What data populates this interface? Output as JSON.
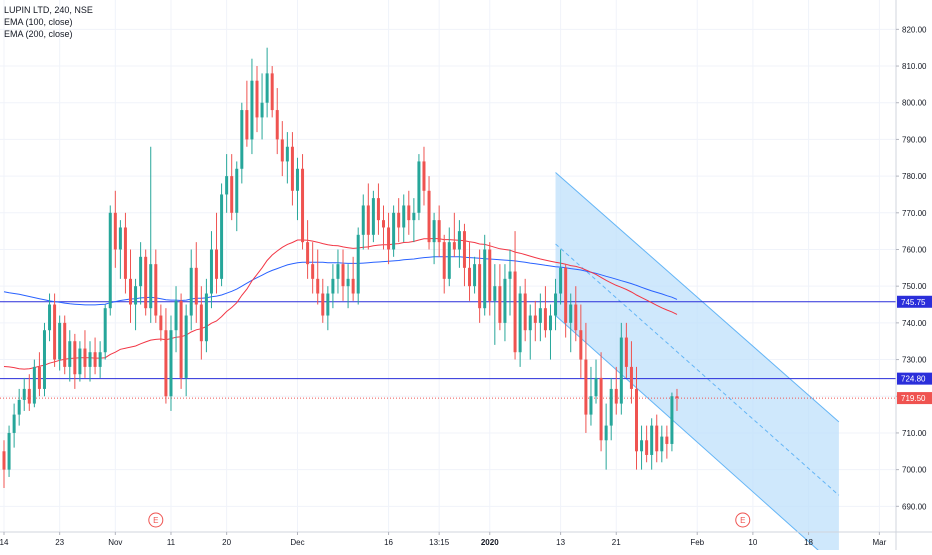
{
  "legend": {
    "symbol_line": "LUPIN LTD, 240, NSE",
    "ema100": "EMA (100, close)",
    "ema200": "EMA (200, close)"
  },
  "colors": {
    "up": "#26a69a",
    "down": "#ef5350",
    "ema100": "#f23645",
    "ema200": "#2962ff",
    "hline": "#2a2eda",
    "current_price": "#ef5350",
    "channel_fill": "#bbdefb",
    "channel_line": "#64b5f6",
    "grid": "#f0f3fa",
    "axis_text": "#131722",
    "earnings": "#ef5350"
  },
  "chart_data": {
    "type": "candlestick",
    "ylim": [
      683,
      828
    ],
    "y_ticks": [
      "690.00",
      "700.00",
      "710.00",
      "720.00",
      "730.00",
      "740.00",
      "750.00",
      "760.00",
      "770.00",
      "780.00",
      "790.00",
      "800.00",
      "810.00",
      "820.00"
    ],
    "x_ticks": [
      {
        "label": "14",
        "bar": 0
      },
      {
        "label": "23",
        "bar": 11
      },
      {
        "label": "Nov",
        "bar": 22
      },
      {
        "label": "11",
        "bar": 33
      },
      {
        "label": "20",
        "bar": 44
      },
      {
        "label": "Dec",
        "bar": 58
      },
      {
        "label": "16",
        "bar": 76
      },
      {
        "label": "13:15",
        "bar": 86
      },
      {
        "label": "2020",
        "bar": 96
      },
      {
        "label": "13",
        "bar": 110
      },
      {
        "label": "21",
        "bar": 121
      },
      {
        "label": "Feb",
        "bar": 137
      },
      {
        "label": "10",
        "bar": 148
      },
      {
        "label": "18",
        "bar": 159
      },
      {
        "label": "Mar",
        "bar": 173
      }
    ],
    "horizontal_lines": [
      {
        "value": 745.75,
        "label": "745.75"
      },
      {
        "value": 724.8,
        "label": "724.80"
      }
    ],
    "current_price": {
      "value": 719.5,
      "label": "719.50"
    },
    "earnings_markers": [
      {
        "bar": 30,
        "label": "E"
      },
      {
        "bar": 146,
        "label": "E"
      }
    ],
    "channel": {
      "upper_start": {
        "bar": 109,
        "value": 781
      },
      "upper_end": {
        "bar": 165,
        "value": 713
      },
      "lower_start": {
        "bar": 109,
        "value": 742
      },
      "lower_end": {
        "bar": 165,
        "value": 673
      },
      "mid_start": {
        "bar": 109,
        "value": 761.5
      },
      "mid_end": {
        "bar": 165,
        "value": 693
      }
    },
    "ohlc": [
      [
        705,
        708,
        695,
        700
      ],
      [
        700,
        712,
        698,
        710
      ],
      [
        710,
        718,
        706,
        715
      ],
      [
        715,
        722,
        712,
        719
      ],
      [
        719,
        725,
        716,
        722
      ],
      [
        722,
        726,
        716,
        718
      ],
      [
        718,
        730,
        717,
        728
      ],
      [
        728,
        732,
        720,
        722
      ],
      [
        722,
        740,
        720,
        738
      ],
      [
        738,
        748,
        735,
        745
      ],
      [
        745,
        748,
        728,
        730
      ],
      [
        730,
        742,
        727,
        740
      ],
      [
        740,
        742,
        726,
        728
      ],
      [
        728,
        738,
        724,
        735
      ],
      [
        735,
        737,
        722,
        726
      ],
      [
        726,
        735,
        724,
        733
      ],
      [
        733,
        738,
        725,
        728
      ],
      [
        728,
        735,
        724,
        732
      ],
      [
        732,
        736,
        726,
        728
      ],
      [
        728,
        735,
        725,
        732
      ],
      [
        732,
        745,
        730,
        744
      ],
      [
        744,
        772,
        742,
        770
      ],
      [
        770,
        776,
        755,
        760
      ],
      [
        760,
        768,
        752,
        766
      ],
      [
        766,
        770,
        748,
        752
      ],
      [
        752,
        760,
        740,
        745
      ],
      [
        745,
        752,
        738,
        750
      ],
      [
        750,
        762,
        745,
        758
      ],
      [
        758,
        760,
        742,
        744
      ],
      [
        744,
        788,
        740,
        756
      ],
      [
        756,
        760,
        740,
        742
      ],
      [
        742,
        745,
        735,
        738
      ],
      [
        738,
        744,
        718,
        720
      ],
      [
        720,
        742,
        716,
        738
      ],
      [
        738,
        750,
        732,
        746
      ],
      [
        746,
        748,
        722,
        725
      ],
      [
        725,
        745,
        720,
        742
      ],
      [
        742,
        760,
        738,
        755
      ],
      [
        755,
        762,
        740,
        745
      ],
      [
        745,
        750,
        730,
        735
      ],
      [
        735,
        752,
        732,
        748
      ],
      [
        748,
        765,
        744,
        760
      ],
      [
        760,
        770,
        748,
        752
      ],
      [
        752,
        778,
        750,
        775
      ],
      [
        775,
        786,
        770,
        780
      ],
      [
        780,
        786,
        768,
        770
      ],
      [
        770,
        784,
        765,
        782
      ],
      [
        782,
        800,
        778,
        798
      ],
      [
        798,
        806,
        788,
        790
      ],
      [
        790,
        812,
        786,
        806
      ],
      [
        806,
        810,
        792,
        796
      ],
      [
        796,
        808,
        790,
        800
      ],
      [
        800,
        815,
        796,
        808
      ],
      [
        808,
        810,
        796,
        798
      ],
      [
        798,
        804,
        786,
        790
      ],
      [
        790,
        795,
        780,
        784
      ],
      [
        784,
        792,
        778,
        788
      ],
      [
        788,
        792,
        772,
        776
      ],
      [
        776,
        785,
        768,
        782
      ],
      [
        782,
        786,
        760,
        762
      ],
      [
        762,
        768,
        752,
        756
      ],
      [
        756,
        762,
        748,
        752
      ],
      [
        752,
        760,
        745,
        748
      ],
      [
        748,
        752,
        740,
        742
      ],
      [
        742,
        750,
        738,
        748
      ],
      [
        748,
        756,
        744,
        752
      ],
      [
        752,
        760,
        748,
        756
      ],
      [
        756,
        760,
        746,
        750
      ],
      [
        750,
        756,
        744,
        752
      ],
      [
        752,
        758,
        746,
        748
      ],
      [
        748,
        766,
        745,
        764
      ],
      [
        764,
        775,
        760,
        772
      ],
      [
        772,
        778,
        760,
        764
      ],
      [
        764,
        776,
        762,
        774
      ],
      [
        774,
        778,
        764,
        768
      ],
      [
        768,
        772,
        760,
        766
      ],
      [
        766,
        770,
        756,
        760
      ],
      [
        760,
        772,
        758,
        770
      ],
      [
        770,
        774,
        762,
        766
      ],
      [
        766,
        775,
        762,
        772
      ],
      [
        772,
        776,
        764,
        768
      ],
      [
        768,
        774,
        762,
        770
      ],
      [
        770,
        786,
        768,
        784
      ],
      [
        784,
        788,
        772,
        776
      ],
      [
        776,
        780,
        760,
        762
      ],
      [
        762,
        770,
        756,
        768
      ],
      [
        768,
        772,
        758,
        762
      ],
      [
        762,
        764,
        748,
        752
      ],
      [
        752,
        766,
        750,
        762
      ],
      [
        762,
        770,
        758,
        760
      ],
      [
        760,
        768,
        755,
        765
      ],
      [
        765,
        767,
        750,
        755
      ],
      [
        755,
        762,
        746,
        750
      ],
      [
        750,
        758,
        748,
        756
      ],
      [
        756,
        760,
        740,
        744
      ],
      [
        744,
        764,
        742,
        760
      ],
      [
        760,
        762,
        742,
        746
      ],
      [
        746,
        756,
        734,
        750
      ],
      [
        750,
        756,
        738,
        740
      ],
      [
        740,
        756,
        735,
        752
      ],
      [
        752,
        760,
        742,
        754
      ],
      [
        754,
        765,
        730,
        732
      ],
      [
        732,
        750,
        728,
        748
      ],
      [
        748,
        752,
        735,
        738
      ],
      [
        738,
        745,
        730,
        742
      ],
      [
        742,
        746,
        735,
        740
      ],
      [
        740,
        748,
        735,
        744
      ],
      [
        744,
        750,
        736,
        738
      ],
      [
        738,
        745,
        730,
        742
      ],
      [
        742,
        752,
        738,
        748
      ],
      [
        748,
        760,
        745,
        755
      ],
      [
        755,
        756,
        736,
        740
      ],
      [
        740,
        748,
        732,
        745
      ],
      [
        745,
        750,
        735,
        738
      ],
      [
        738,
        745,
        725,
        730
      ],
      [
        730,
        740,
        710,
        715
      ],
      [
        715,
        728,
        712,
        720
      ],
      [
        720,
        730,
        718,
        725
      ],
      [
        725,
        732,
        705,
        708
      ],
      [
        708,
        718,
        700,
        712
      ],
      [
        712,
        725,
        708,
        722
      ],
      [
        722,
        728,
        715,
        718
      ],
      [
        718,
        740,
        715,
        736
      ],
      [
        736,
        740,
        725,
        728
      ],
      [
        728,
        735,
        718,
        722
      ],
      [
        722,
        728,
        700,
        705
      ],
      [
        705,
        712,
        700,
        708
      ],
      [
        708,
        712,
        702,
        704
      ],
      [
        704,
        714,
        700,
        712
      ],
      [
        712,
        715,
        702,
        705
      ],
      [
        705,
        712,
        702,
        709
      ],
      [
        709,
        712,
        703,
        707
      ],
      [
        707,
        721,
        705,
        720
      ],
      [
        720,
        722,
        716,
        719.5
      ]
    ],
    "ema100": [
      728.1,
      728.0,
      727.8,
      727.5,
      727.4,
      727.5,
      727.8,
      728.2,
      728.5,
      729.0,
      729.4,
      729.8,
      730.1,
      730.3,
      730.4,
      730.5,
      730.5,
      730.5,
      730.4,
      730.4,
      730.5,
      731.4,
      732.0,
      732.8,
      733.1,
      733.4,
      733.7,
      734.3,
      734.8,
      735.3,
      735.5,
      735.6,
      735.4,
      735.7,
      736.1,
      736.2,
      736.7,
      737.5,
      738.1,
      738.4,
      739.0,
      739.9,
      740.5,
      741.7,
      743.1,
      744.2,
      745.5,
      747.5,
      749.2,
      751.4,
      753.2,
      755.0,
      757.0,
      758.5,
      759.6,
      760.6,
      761.4,
      761.9,
      762.6,
      762.6,
      762.5,
      762.3,
      762.0,
      761.6,
      761.3,
      761.1,
      761.0,
      760.7,
      760.5,
      760.3,
      760.4,
      760.6,
      760.7,
      761.0,
      761.2,
      761.3,
      761.3,
      761.5,
      761.6,
      761.9,
      762.0,
      762.2,
      762.6,
      762.9,
      762.9,
      763.0,
      762.9,
      762.7,
      762.7,
      762.6,
      762.5,
      762.4,
      762.1,
      761.9,
      761.5,
      761.4,
      761.0,
      760.6,
      760.2,
      760.0,
      759.8,
      759.3,
      759.0,
      758.6,
      758.2,
      757.8,
      757.4,
      757.1,
      756.8,
      756.5,
      756.3,
      756.0,
      755.6,
      755.4,
      755.0,
      754.4,
      753.8,
      753.2,
      752.4,
      751.6,
      750.9,
      750.2,
      749.7,
      749.1,
      748.4,
      747.6,
      746.9,
      746.2,
      745.5,
      744.8,
      744.1,
      743.5,
      743.0,
      742.3
    ],
    "ema200": [
      748.5,
      748.2,
      748.0,
      747.8,
      747.5,
      747.2,
      746.9,
      746.6,
      746.3,
      746.0,
      745.8,
      745.6,
      745.4,
      745.2,
      745.1,
      745.0,
      744.9,
      744.9,
      744.9,
      745.0,
      745.1,
      745.5,
      745.8,
      746.1,
      746.3,
      746.5,
      746.6,
      746.8,
      746.9,
      747.0,
      746.8,
      746.6,
      746.3,
      746.2,
      746.2,
      746.1,
      746.2,
      746.5,
      746.7,
      746.7,
      746.8,
      747.1,
      747.3,
      747.6,
      748.1,
      748.6,
      749.2,
      750.0,
      750.8,
      751.6,
      752.3,
      753.0,
      753.7,
      754.3,
      754.8,
      755.3,
      755.8,
      756.1,
      756.4,
      756.5,
      756.5,
      756.5,
      756.5,
      756.5,
      756.4,
      756.4,
      756.4,
      756.3,
      756.2,
      756.2,
      756.2,
      756.3,
      756.4,
      756.5,
      756.6,
      756.7,
      756.8,
      756.9,
      757.0,
      757.2,
      757.3,
      757.4,
      757.6,
      757.8,
      757.9,
      758.0,
      758.0,
      758.0,
      758.0,
      758.0,
      758.0,
      757.9,
      757.8,
      757.7,
      757.6,
      757.5,
      757.4,
      757.3,
      757.2,
      757.1,
      757.0,
      756.9,
      756.7,
      756.5,
      756.3,
      756.1,
      755.9,
      755.7,
      755.5,
      755.3,
      755.2,
      755.0,
      754.8,
      754.6,
      754.4,
      754.1,
      753.8,
      753.5,
      753.1,
      752.7,
      752.3,
      751.9,
      751.5,
      751.1,
      750.7,
      750.2,
      749.7,
      749.2,
      748.7,
      748.3,
      747.9,
      747.4,
      747.0,
      746.4
    ]
  }
}
